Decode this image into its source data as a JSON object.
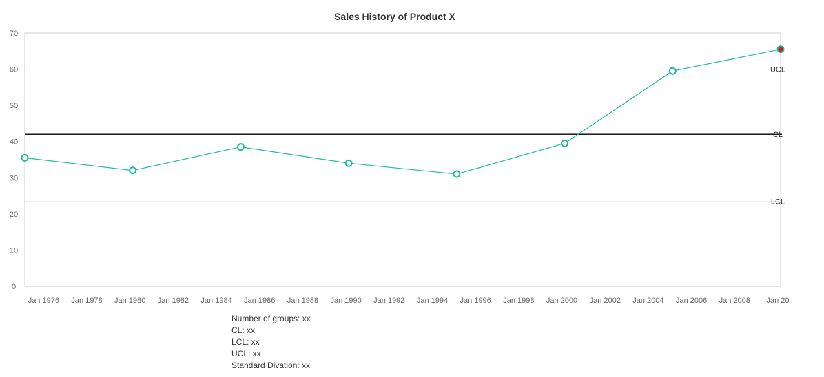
{
  "chart_data": {
    "type": "line",
    "title": "Sales History of Product X",
    "xlabel": "",
    "ylabel": "",
    "ylim": [
      0,
      70
    ],
    "y_ticks": [
      0,
      10,
      20,
      30,
      40,
      50,
      60,
      70
    ],
    "xlim": [
      "1975-01-01",
      "2010-01-01"
    ],
    "x_tick_labels": [
      "Jan 1976",
      "Jan 1978",
      "Jan 1980",
      "Jan 1982",
      "Jan 1984",
      "Jan 1986",
      "Jan 1988",
      "Jan 1990",
      "Jan 1992",
      "Jan 1994",
      "Jan 1996",
      "Jan 1998",
      "Jan 2000",
      "Jan 2002",
      "Jan 2004",
      "Jan 2006",
      "Jan 2008",
      "Jan 20"
    ],
    "x_tick_dates": [
      "1976-01-01",
      "1978-01-01",
      "1980-01-01",
      "1982-01-01",
      "1984-01-01",
      "1986-01-01",
      "1988-01-01",
      "1990-01-01",
      "1992-01-01",
      "1994-01-01",
      "1996-01-01",
      "1998-01-01",
      "2000-01-01",
      "2002-01-01",
      "2004-01-01",
      "2006-01-01",
      "2008-01-01",
      "2010-01-01"
    ],
    "series": [
      {
        "color": "#1abc9c",
        "points": [
          {
            "x": "1975-01-01",
            "y": 35.5
          },
          {
            "x": "1980-01-01",
            "y": 32
          },
          {
            "x": "1985-01-01",
            "y": 38.5
          },
          {
            "x": "1990-01-01",
            "y": 34
          },
          {
            "x": "1995-01-01",
            "y": 31
          },
          {
            "x": "2000-01-01",
            "y": 39.5
          },
          {
            "x": "2005-01-01",
            "y": 59.5
          },
          {
            "x": "2010-01-01",
            "y": 65.5
          }
        ],
        "highlighted_point_index": 7,
        "highlight_color": "#d42020"
      }
    ],
    "control_lines": [
      {
        "label": "UCL",
        "y": 60,
        "color": "#eeeeee"
      },
      {
        "label": "CL",
        "y": 42,
        "color": "#000000"
      },
      {
        "label": "LCL",
        "y": 23.5,
        "color": "#eeeeee"
      }
    ],
    "grid": false,
    "legend": "none"
  },
  "stats": {
    "groups": "Number of groups: xx",
    "cl": "CL: xx",
    "lcl": "LCL: xx",
    "ucl": "UCL: xx",
    "std": "Standard Divation: xx"
  }
}
